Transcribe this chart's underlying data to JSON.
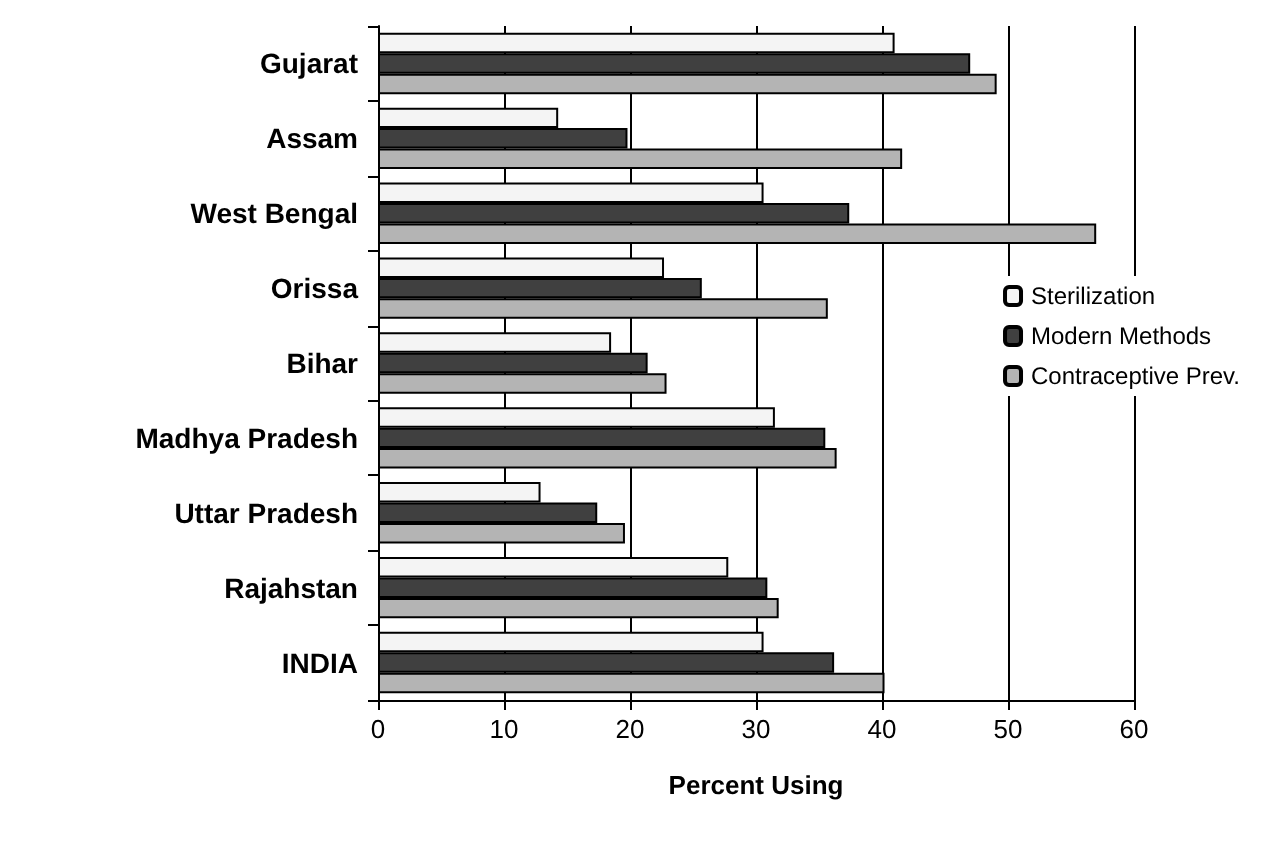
{
  "chart_data": {
    "type": "bar",
    "orientation": "horizontal",
    "xlabel": "Percent Using",
    "categories": [
      "Gujarat",
      "Assam",
      "West Bengal",
      "Orissa",
      "Bihar",
      "Madhya Pradesh",
      "Uttar Pradesh",
      "Rajahstan",
      "INDIA"
    ],
    "series": [
      {
        "name": "Sterilization",
        "color": "#f4f4f4",
        "values": [
          41.0,
          14.3,
          30.6,
          22.7,
          18.5,
          31.5,
          12.9,
          27.8,
          30.6
        ]
      },
      {
        "name": "Modern Methods",
        "color": "#404040",
        "values": [
          47.0,
          19.8,
          37.4,
          25.7,
          21.4,
          35.5,
          17.4,
          30.9,
          36.2
        ]
      },
      {
        "name": "Contraceptive Prev.",
        "color": "#b4b4b4",
        "values": [
          49.1,
          41.6,
          57.0,
          35.7,
          22.9,
          36.4,
          19.6,
          31.8,
          40.2
        ]
      }
    ],
    "xlim": [
      0,
      60
    ],
    "xticks": [
      0,
      10,
      20,
      30,
      40,
      50,
      60
    ],
    "grid": "x",
    "legend": "right"
  }
}
